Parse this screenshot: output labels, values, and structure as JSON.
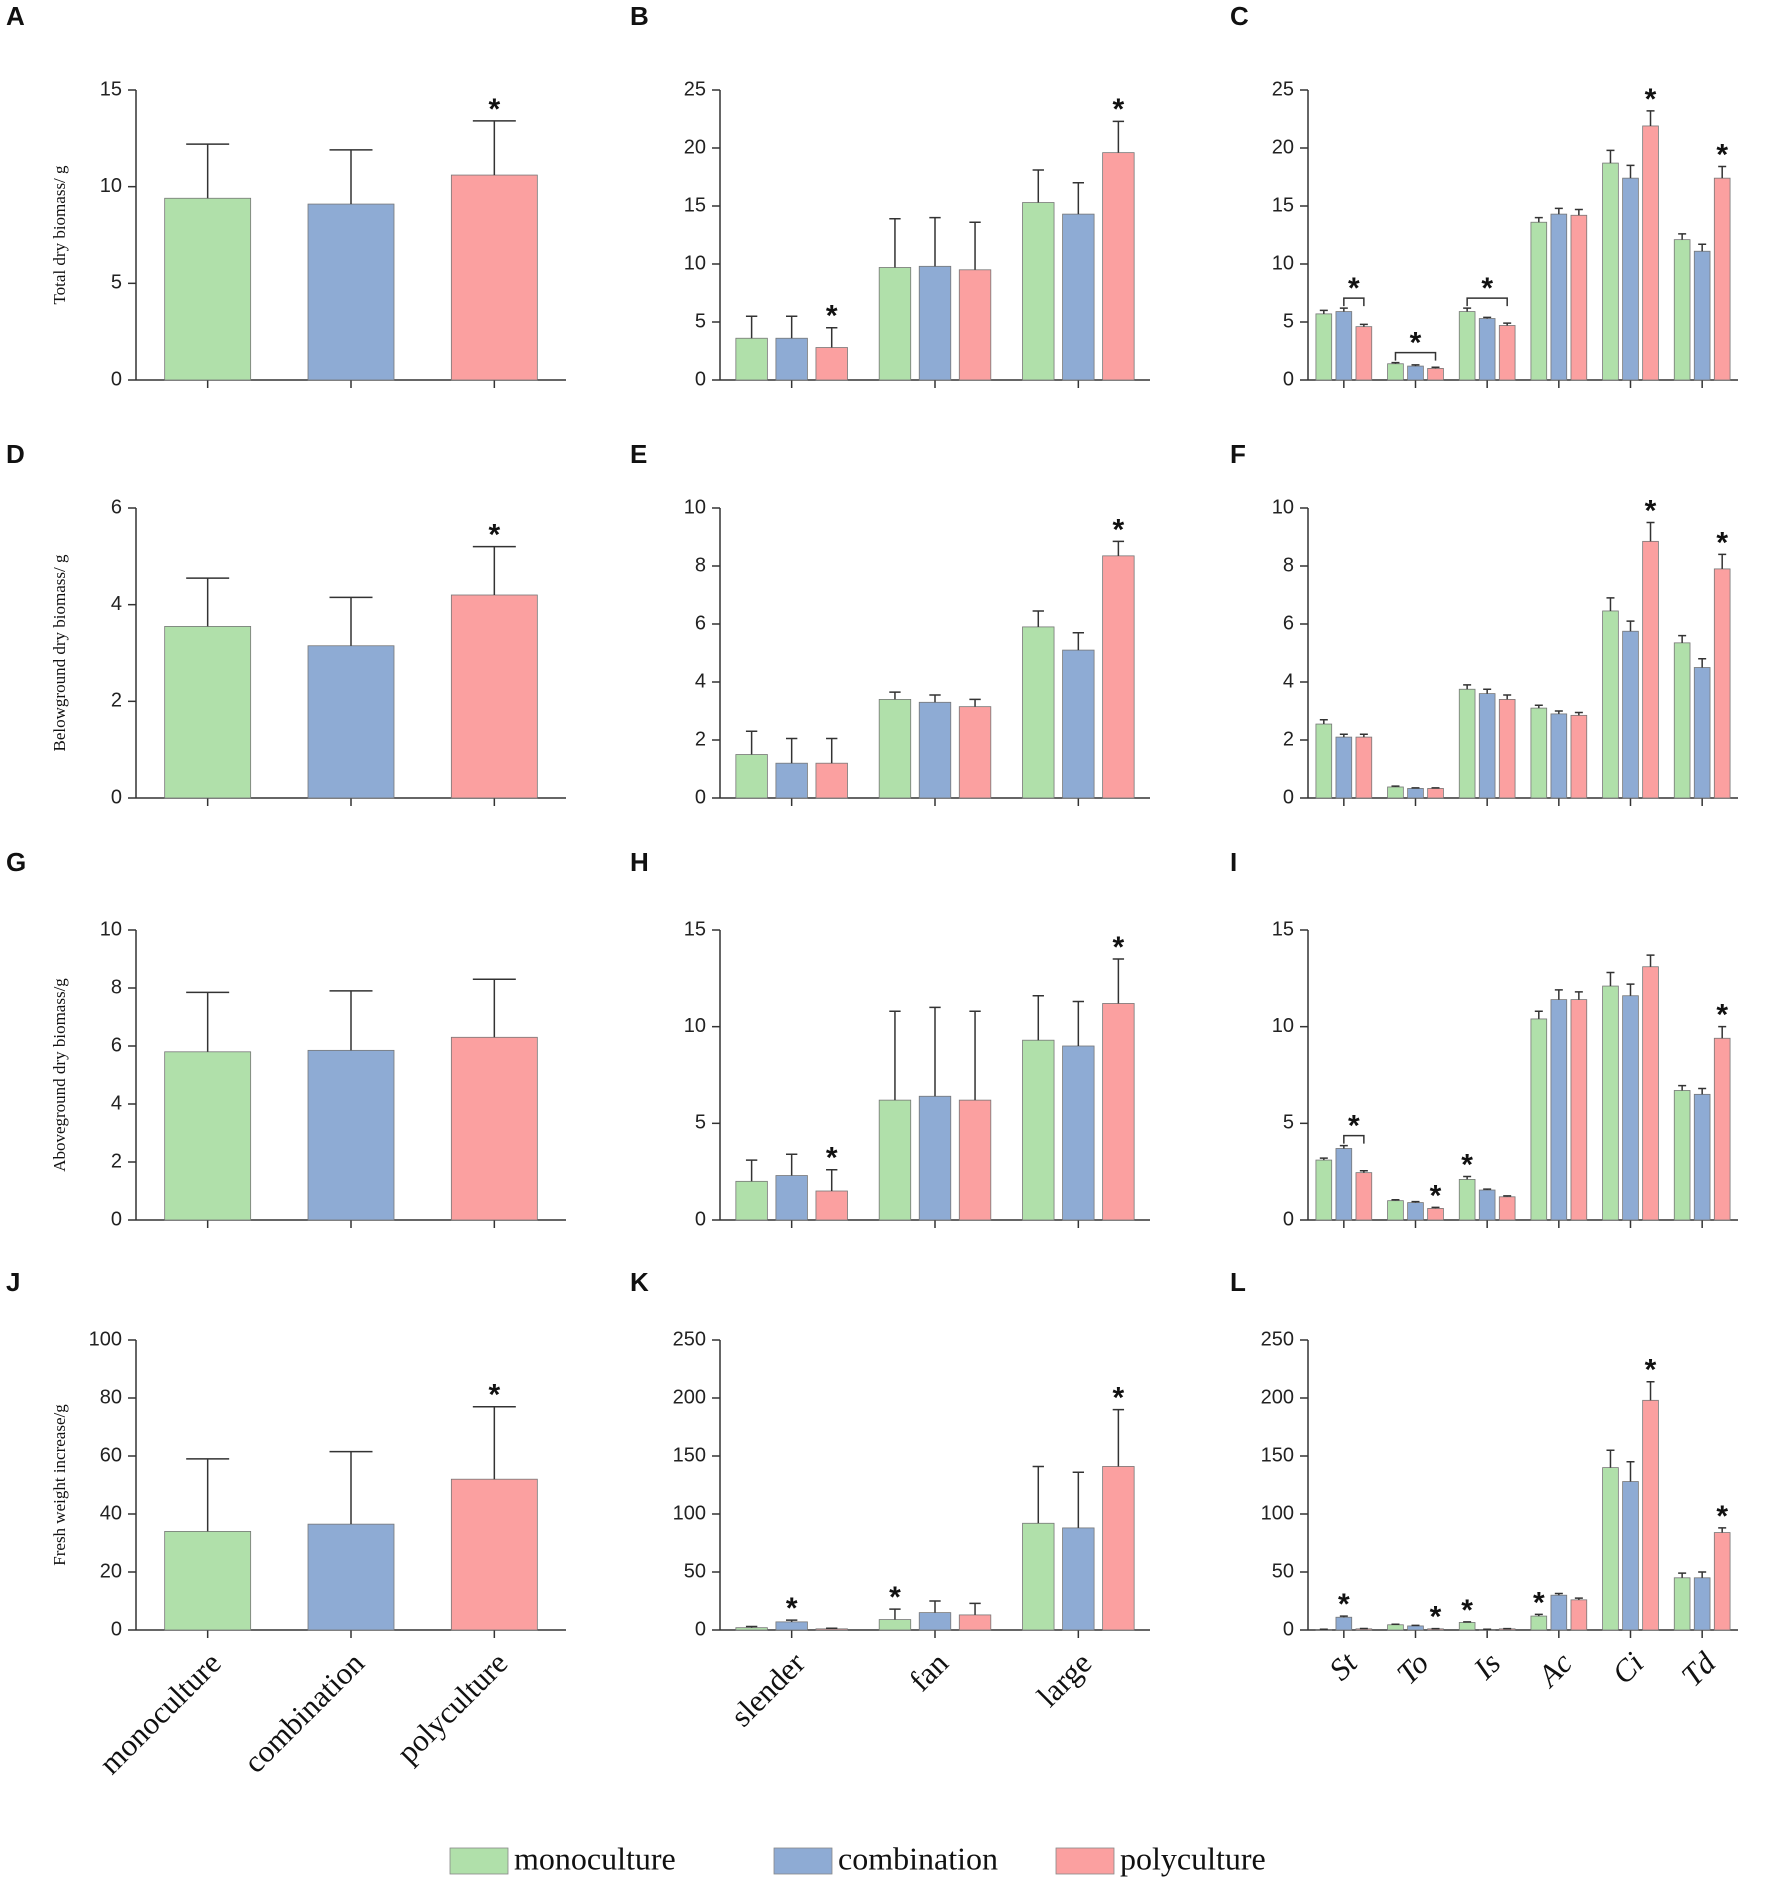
{
  "legend": {
    "names": [
      "monoculture",
      "combination",
      "polyculture"
    ],
    "colors": [
      "#b0e0aa",
      "#8eabd4",
      "#fba0a0"
    ]
  },
  "chart_data": [
    {
      "type": "bar",
      "panel": "A",
      "y_label": "Total dry biomass/ g",
      "categories": [
        null,
        null,
        null
      ],
      "values": [
        9.4,
        9.1,
        10.6
      ],
      "errors": [
        2.8,
        2.8,
        2.8
      ],
      "ylim": [
        0,
        15
      ],
      "yticks": [
        0,
        5,
        10,
        15
      ],
      "significance": [
        {
          "label": "*",
          "category": 2
        }
      ]
    },
    {
      "type": "grouped_bar",
      "panel": "B",
      "categories": [
        null,
        null,
        null
      ],
      "series": [
        {
          "values": [
            3.6,
            9.7,
            15.3
          ],
          "errors": [
            1.9,
            4.2,
            2.8
          ]
        },
        {
          "values": [
            3.6,
            9.8,
            14.3
          ],
          "errors": [
            1.9,
            4.2,
            2.7
          ]
        },
        {
          "values": [
            2.8,
            9.5,
            19.6
          ],
          "errors": [
            1.7,
            4.1,
            2.7
          ]
        }
      ],
      "ylim": [
        0,
        25
      ],
      "yticks": [
        0,
        5,
        10,
        15,
        20,
        25
      ],
      "significance": [
        {
          "label": "*",
          "series": 2,
          "category": 0
        },
        {
          "label": "*",
          "series": 2,
          "category": 2
        }
      ]
    },
    {
      "type": "grouped_bar",
      "panel": "C",
      "categories": [
        null,
        null,
        null,
        null,
        null,
        null
      ],
      "series": [
        {
          "values": [
            5.7,
            1.4,
            5.9,
            13.6,
            18.7,
            12.1
          ],
          "errors": [
            0.3,
            0.1,
            0.3,
            0.4,
            1.1,
            0.5
          ]
        },
        {
          "values": [
            5.9,
            1.2,
            5.3,
            14.3,
            17.4,
            11.1
          ],
          "errors": [
            0.3,
            0.1,
            0.1,
            0.5,
            1.1,
            0.6
          ]
        },
        {
          "values": [
            4.6,
            1.0,
            4.7,
            14.2,
            21.9,
            17.4
          ],
          "errors": [
            0.2,
            0.1,
            0.2,
            0.5,
            1.3,
            1.0
          ]
        }
      ],
      "ylim": [
        0,
        25
      ],
      "yticks": [
        0,
        5,
        10,
        15,
        20,
        25
      ],
      "significance": [
        {
          "label": "*",
          "series": 2,
          "category": 0,
          "bracket_from": 1
        },
        {
          "label": "*",
          "series": 2,
          "category": 1,
          "bracket_from": 0
        },
        {
          "label": "*",
          "series": 2,
          "category": 2,
          "bracket_from": 0
        },
        {
          "label": "*",
          "series": 2,
          "category": 4
        },
        {
          "label": "*",
          "series": 2,
          "category": 5
        }
      ]
    },
    {
      "type": "bar",
      "panel": "D",
      "y_label": "Belowground dry biomass/ g",
      "categories": [
        null,
        null,
        null
      ],
      "values": [
        3.55,
        3.15,
        4.2
      ],
      "errors": [
        1.0,
        1.0,
        1.0
      ],
      "ylim": [
        0,
        6
      ],
      "yticks": [
        0,
        2,
        4,
        6
      ],
      "significance": [
        {
          "label": "*",
          "category": 2
        }
      ]
    },
    {
      "type": "grouped_bar",
      "panel": "E",
      "categories": [
        null,
        null,
        null
      ],
      "series": [
        {
          "values": [
            1.5,
            3.4,
            5.9
          ],
          "errors": [
            0.8,
            0.25,
            0.55
          ]
        },
        {
          "values": [
            1.2,
            3.3,
            5.1
          ],
          "errors": [
            0.85,
            0.25,
            0.6
          ]
        },
        {
          "values": [
            1.2,
            3.15,
            8.35
          ],
          "errors": [
            0.85,
            0.25,
            0.5
          ]
        }
      ],
      "ylim": [
        0,
        10
      ],
      "yticks": [
        0,
        2,
        4,
        6,
        8,
        10
      ],
      "significance": [
        {
          "label": "*",
          "series": 2,
          "category": 2
        }
      ]
    },
    {
      "type": "grouped_bar",
      "panel": "F",
      "categories": [
        null,
        null,
        null,
        null,
        null,
        null
      ],
      "series": [
        {
          "values": [
            2.55,
            0.38,
            3.75,
            3.1,
            6.45,
            5.35
          ],
          "errors": [
            0.15,
            0.03,
            0.15,
            0.1,
            0.45,
            0.25
          ]
        },
        {
          "values": [
            2.1,
            0.33,
            3.6,
            2.9,
            5.75,
            4.5
          ],
          "errors": [
            0.1,
            0.02,
            0.15,
            0.1,
            0.35,
            0.3
          ]
        },
        {
          "values": [
            2.1,
            0.33,
            3.4,
            2.85,
            8.85,
            7.9
          ],
          "errors": [
            0.1,
            0.02,
            0.15,
            0.1,
            0.65,
            0.5
          ]
        }
      ],
      "ylim": [
        0,
        10
      ],
      "yticks": [
        0,
        2,
        4,
        6,
        8,
        10
      ],
      "significance": [
        {
          "label": "*",
          "series": 2,
          "category": 4
        },
        {
          "label": "*",
          "series": 2,
          "category": 5
        }
      ]
    },
    {
      "type": "bar",
      "panel": "G",
      "y_label": "Aboveground dry biomass/g",
      "categories": [
        null,
        null,
        null
      ],
      "values": [
        5.8,
        5.85,
        6.3
      ],
      "errors": [
        2.05,
        2.05,
        2.0
      ],
      "ylim": [
        0,
        10
      ],
      "yticks": [
        0,
        2,
        4,
        6,
        8,
        10
      ],
      "significance": []
    },
    {
      "type": "grouped_bar",
      "panel": "H",
      "categories": [
        null,
        null,
        null
      ],
      "series": [
        {
          "values": [
            2.0,
            6.2,
            9.3
          ],
          "errors": [
            1.1,
            4.6,
            2.3
          ]
        },
        {
          "values": [
            2.3,
            6.4,
            9.0
          ],
          "errors": [
            1.1,
            4.6,
            2.3
          ]
        },
        {
          "values": [
            1.5,
            6.2,
            11.2
          ],
          "errors": [
            1.1,
            4.6,
            2.3
          ]
        }
      ],
      "ylim": [
        0,
        15
      ],
      "yticks": [
        0,
        5,
        10,
        15
      ],
      "significance": [
        {
          "label": "*",
          "series": 2,
          "category": 0
        },
        {
          "label": "*",
          "series": 2,
          "category": 2
        }
      ]
    },
    {
      "type": "grouped_bar",
      "panel": "I",
      "categories": [
        null,
        null,
        null,
        null,
        null,
        null
      ],
      "series": [
        {
          "values": [
            3.1,
            1.0,
            2.1,
            10.4,
            12.1,
            6.7
          ],
          "errors": [
            0.1,
            0.05,
            0.15,
            0.4,
            0.7,
            0.25
          ]
        },
        {
          "values": [
            3.7,
            0.9,
            1.55,
            11.4,
            11.6,
            6.5
          ],
          "errors": [
            0.15,
            0.05,
            0.05,
            0.5,
            0.6,
            0.3
          ]
        },
        {
          "values": [
            2.45,
            0.6,
            1.2,
            11.4,
            13.1,
            9.4
          ],
          "errors": [
            0.1,
            0.05,
            0.05,
            0.4,
            0.6,
            0.6
          ]
        }
      ],
      "ylim": [
        0,
        15
      ],
      "yticks": [
        0,
        5,
        10,
        15
      ],
      "significance": [
        {
          "label": "*",
          "series": 2,
          "category": 0,
          "bracket_from": 1
        },
        {
          "label": "*",
          "series": 2,
          "category": 1
        },
        {
          "label": "*",
          "series": 0,
          "category": 2
        },
        {
          "label": "*",
          "series": 2,
          "category": 5
        }
      ]
    },
    {
      "type": "bar",
      "panel": "J",
      "y_label": "Fresh weight increase/g",
      "categories": [
        "monoculture",
        "combination",
        "polyculture"
      ],
      "values": [
        34,
        36.5,
        52
      ],
      "errors": [
        25,
        25,
        25
      ],
      "ylim": [
        0,
        100
      ],
      "yticks": [
        0,
        20,
        40,
        60,
        80,
        100
      ],
      "significance": [
        {
          "label": "*",
          "category": 2
        }
      ]
    },
    {
      "type": "grouped_bar",
      "panel": "K",
      "categories": [
        "slender",
        "fan",
        "large"
      ],
      "series": [
        {
          "values": [
            2,
            9,
            92
          ],
          "errors": [
            1,
            9,
            49
          ]
        },
        {
          "values": [
            7,
            15,
            88
          ],
          "errors": [
            1.5,
            10,
            48
          ]
        },
        {
          "values": [
            1,
            13,
            141
          ],
          "errors": [
            0.5,
            10,
            49
          ]
        }
      ],
      "ylim": [
        0,
        250
      ],
      "yticks": [
        0,
        50,
        100,
        150,
        200,
        250
      ],
      "significance": [
        {
          "label": "*",
          "series": 1,
          "category": 0
        },
        {
          "label": "*",
          "series": 0,
          "category": 1
        },
        {
          "label": "*",
          "series": 2,
          "category": 2
        }
      ]
    },
    {
      "type": "grouped_bar",
      "panel": "L",
      "italic_categories": true,
      "categories": [
        "St",
        "To",
        "Is",
        "Ac",
        "Ci",
        "Td"
      ],
      "series": [
        {
          "values": [
            0.5,
            4.5,
            6.5,
            12,
            140,
            45
          ],
          "errors": [
            0.2,
            0.5,
            0.5,
            1.5,
            15,
            4
          ]
        },
        {
          "values": [
            11,
            3.5,
            0.5,
            30,
            128,
            45
          ],
          "errors": [
            1,
            0.5,
            0.2,
            1.5,
            17,
            5
          ]
        },
        {
          "values": [
            1,
            1,
            1,
            26,
            198,
            84
          ],
          "errors": [
            0.3,
            0.2,
            0.2,
            1.5,
            16,
            4
          ]
        }
      ],
      "ylim": [
        0,
        250
      ],
      "yticks": [
        0,
        50,
        100,
        150,
        200,
        250
      ],
      "significance": [
        {
          "label": "*",
          "series": 1,
          "category": 0
        },
        {
          "label": "*",
          "series": 2,
          "category": 1
        },
        {
          "label": "*",
          "series": 0,
          "category": 2
        },
        {
          "label": "*",
          "series": 0,
          "category": 3
        },
        {
          "label": "*",
          "series": 2,
          "category": 4
        },
        {
          "label": "*",
          "series": 2,
          "category": 5
        }
      ]
    }
  ]
}
